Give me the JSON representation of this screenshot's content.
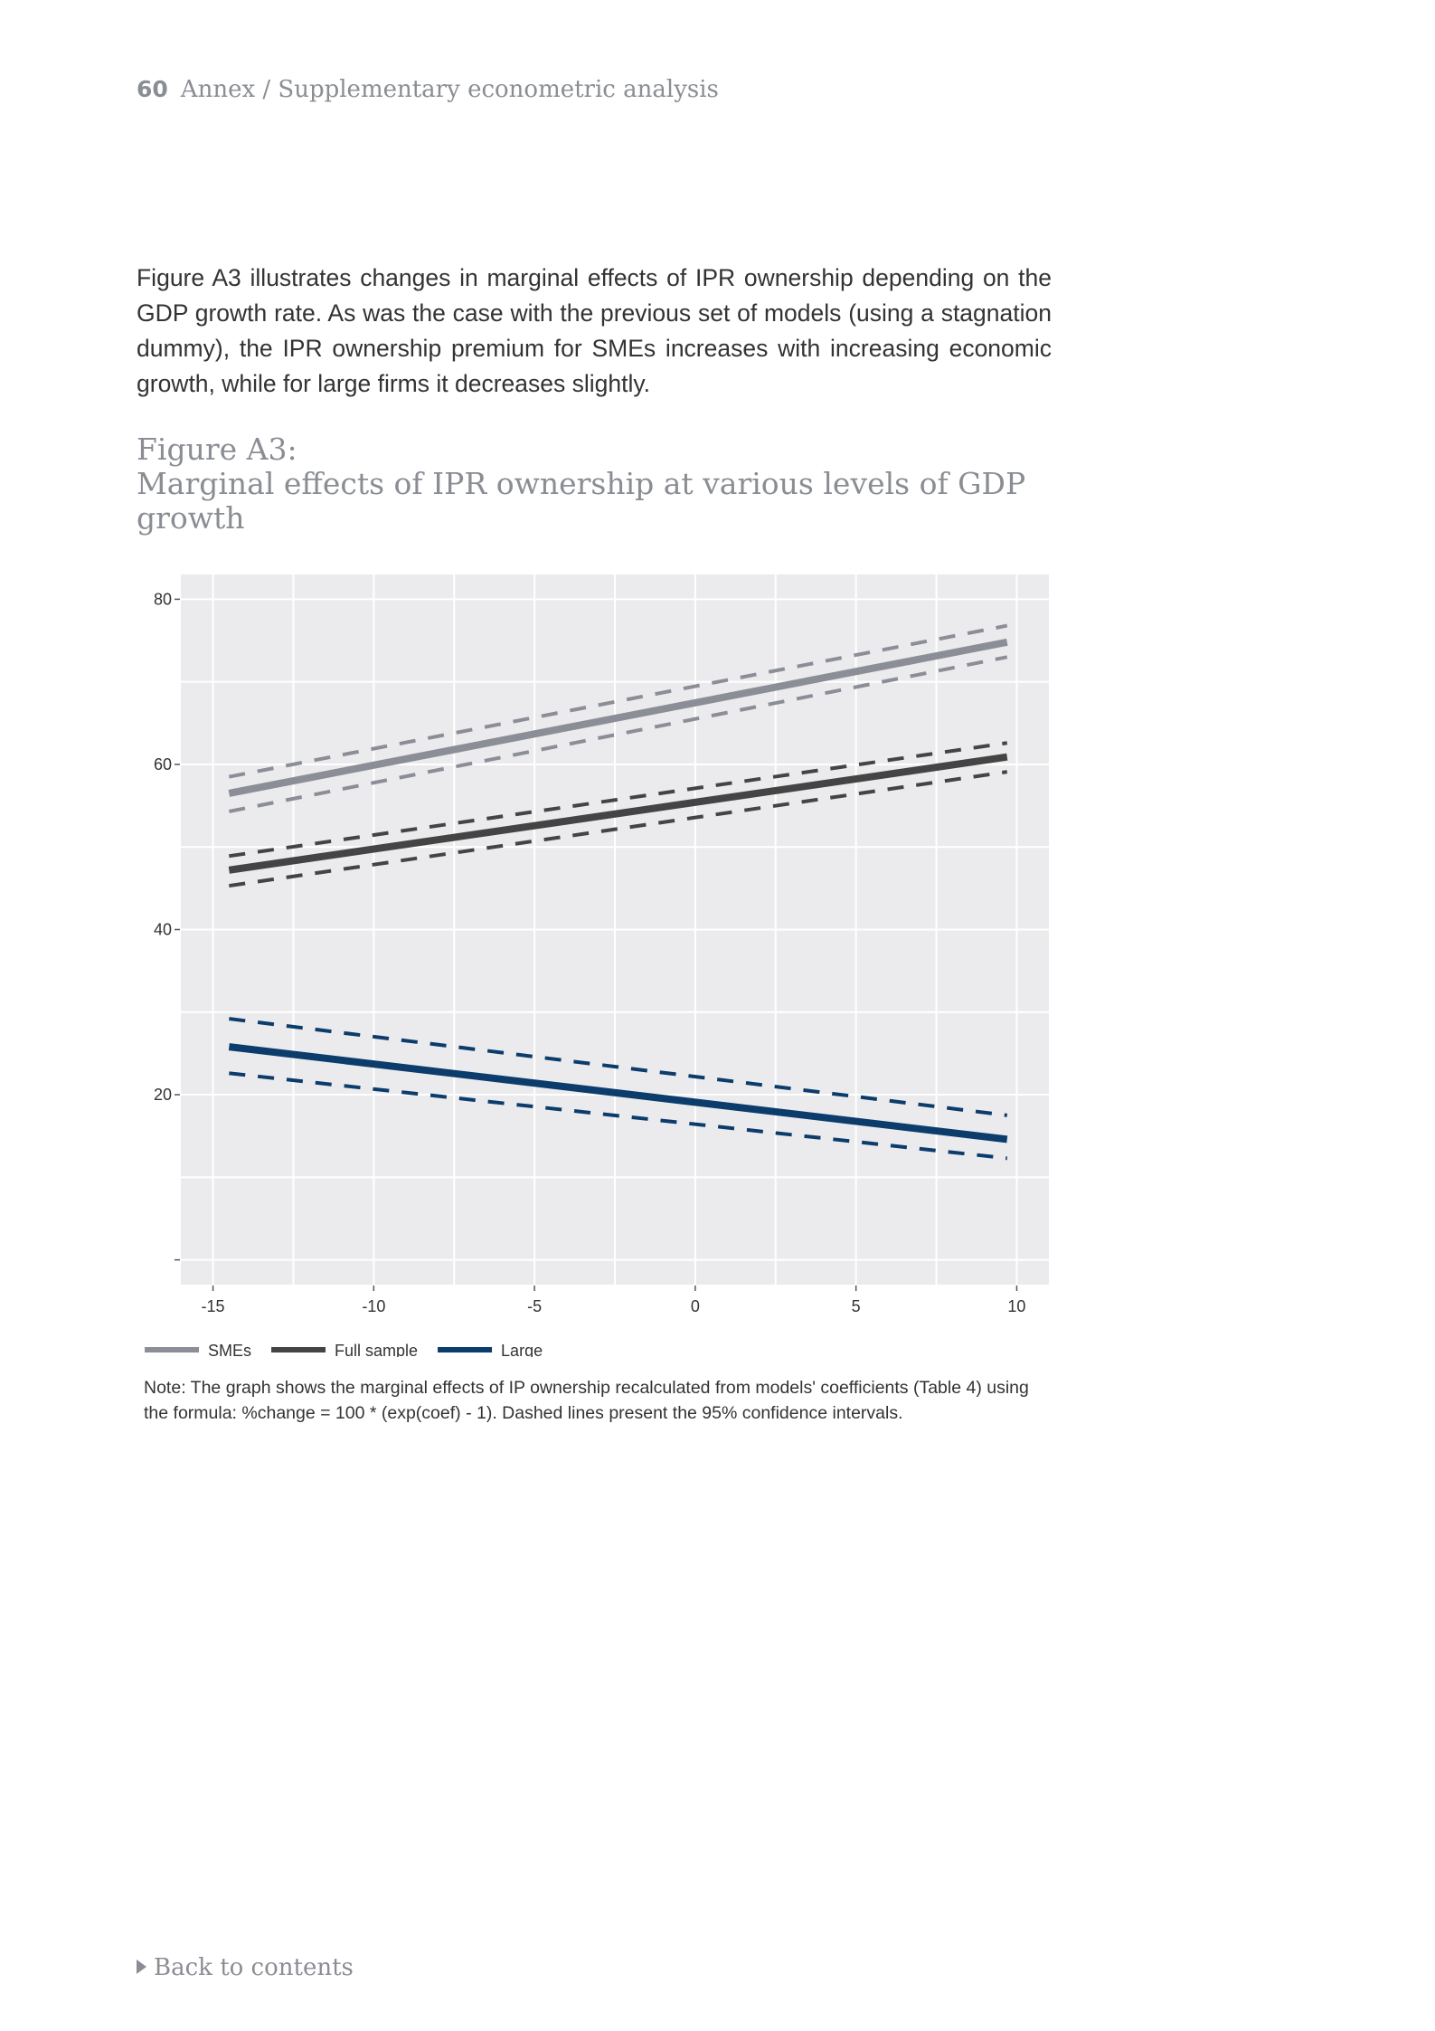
{
  "header": {
    "page_number": "60",
    "section": "Annex / Supplementary econometric analysis"
  },
  "paragraph": "Figure A3 illustrates changes in marginal effects of IPR ownership depending on the GDP growth rate. As was the case with the previous set of models (using a stagnation dummy), the IPR ownership premium for SMEs increases with increasing economic growth, while for large firms it decreases slightly.",
  "figure": {
    "label": "Figure A3:",
    "caption": "Marginal effects of IPR ownership at various levels of GDP growth"
  },
  "chart_data": {
    "type": "line",
    "title": "",
    "xlabel": "",
    "ylabel": "",
    "xlim": [
      -16,
      11
    ],
    "ylim": [
      -3,
      83
    ],
    "x_ticks": [
      -15,
      -10,
      -5,
      0,
      5,
      10
    ],
    "y_ticks": [
      0,
      20,
      40,
      60,
      80
    ],
    "x_tick_labels": [
      "-15",
      "-10",
      "-5",
      "0",
      "5",
      "10"
    ],
    "y_tick_labels": [
      "",
      "20",
      "40",
      "60",
      "80"
    ],
    "grid": true,
    "legend_position": "bottom",
    "series": [
      {
        "name": "SMEs",
        "color": "#8b8e96",
        "x": [
          -14.5,
          9.7
        ],
        "estimate": [
          56.5,
          74.8
        ],
        "lower": [
          54.3,
          73.0
        ],
        "upper": [
          58.5,
          76.8
        ]
      },
      {
        "name": "Full sample",
        "color": "#444444",
        "x": [
          -14.5,
          9.7
        ],
        "estimate": [
          47.2,
          60.9
        ],
        "lower": [
          45.3,
          59.1
        ],
        "upper": [
          48.9,
          62.6
        ]
      },
      {
        "name": "Large",
        "color": "#0c3c6c",
        "x": [
          -14.5,
          9.7
        ],
        "estimate": [
          25.8,
          14.6
        ],
        "lower": [
          22.6,
          12.3
        ],
        "upper": [
          29.2,
          17.5
        ]
      }
    ]
  },
  "note": "Note: The graph shows the marginal effects of IP ownership recalculated from models' coefficients (Table 4) using the formula: %change = 100 * (exp(coef) - 1). Dashed lines present the 95% confidence intervals.",
  "back_link": "Back to contents"
}
